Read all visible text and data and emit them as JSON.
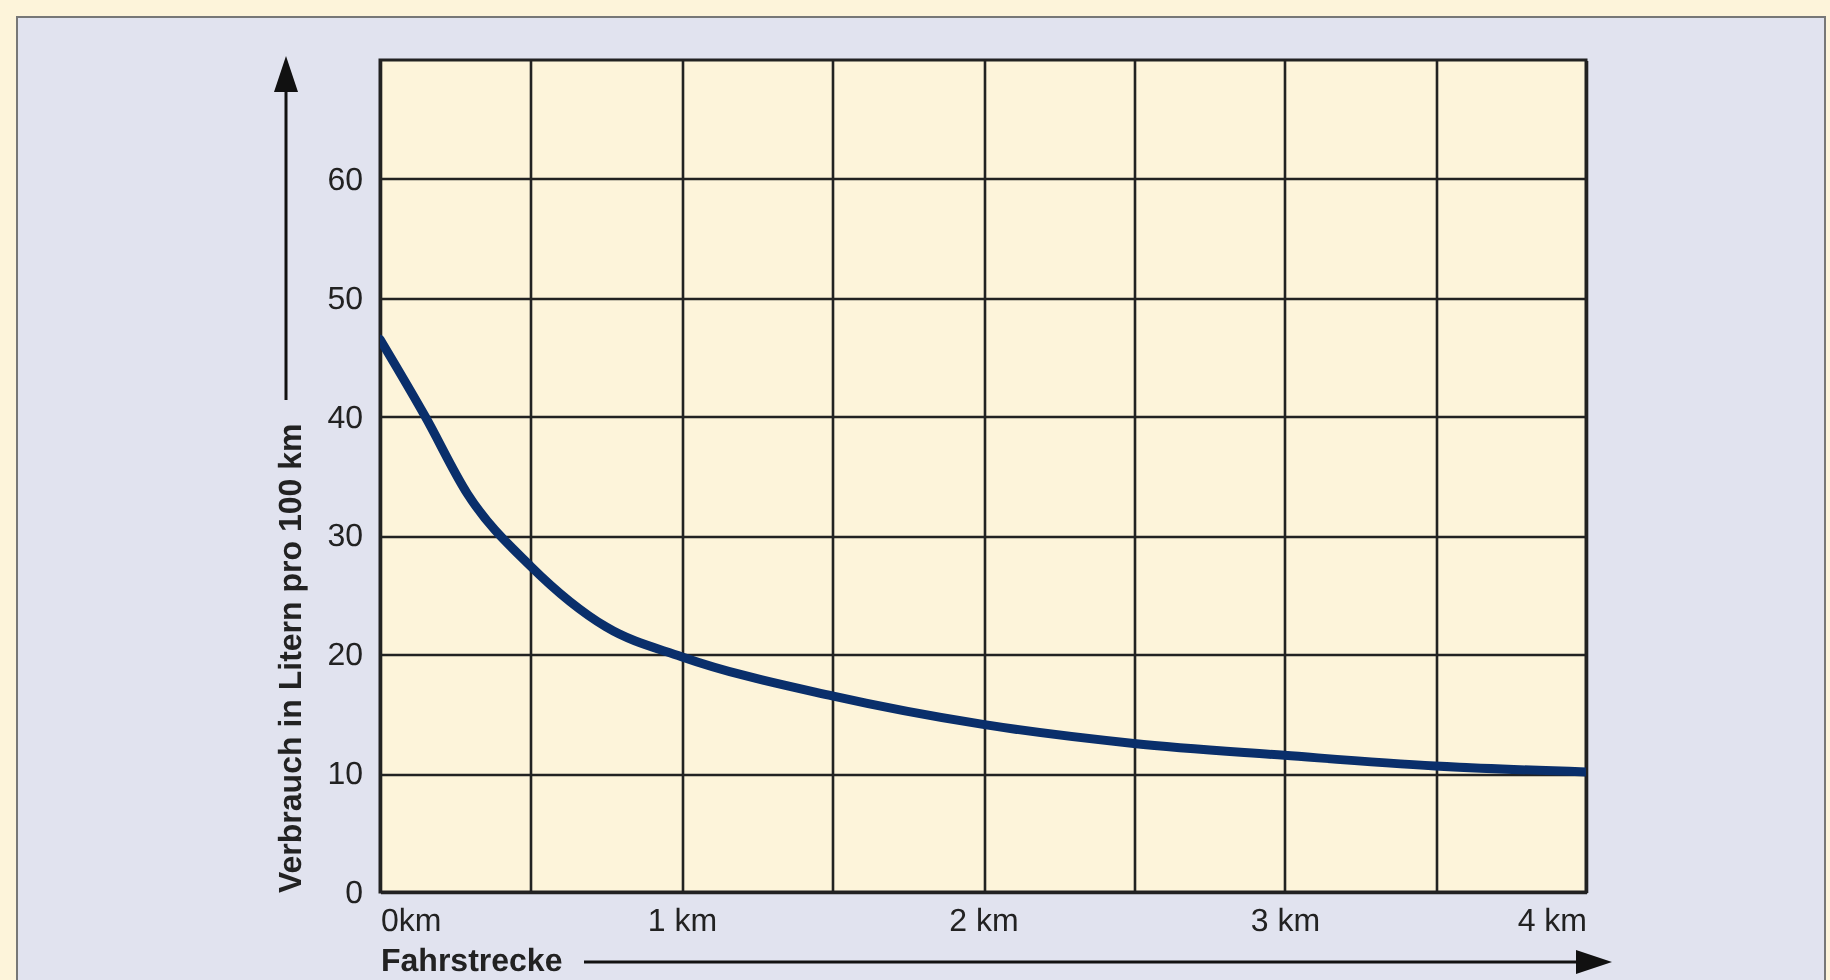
{
  "chart_data": {
    "type": "line",
    "xlabel": "Fahrstrecke",
    "ylabel": "Verbrauch in Litern pro 100 km",
    "x": [
      0,
      0.15,
      0.29,
      0.5,
      0.75,
      1,
      1.5,
      2,
      2.5,
      3,
      3.5,
      4
    ],
    "series": [
      {
        "color": "#0a2f6b",
        "values": [
          46.5,
          40,
          33.5,
          27.4,
          22.3,
          19.8,
          16.5,
          14.1,
          12.5,
          11.5,
          10.6,
          10.1
        ]
      }
    ],
    "xlim": [
      0,
      4
    ],
    "ylim": [
      0,
      70
    ],
    "xticks": [
      {
        "value": 0,
        "label": "0km"
      },
      {
        "value": 0.5,
        "label": null
      },
      {
        "value": 1,
        "label": "1 km"
      },
      {
        "value": 1.5,
        "label": null
      },
      {
        "value": 2,
        "label": "2 km"
      },
      {
        "value": 2.5,
        "label": null
      },
      {
        "value": 3,
        "label": "3 km"
      },
      {
        "value": 3.5,
        "label": null
      },
      {
        "value": 4,
        "label": "4 km"
      }
    ],
    "yticks": [
      0,
      10,
      20,
      30,
      40,
      50,
      60
    ],
    "grid": true,
    "marker": "none",
    "line_style": "solid",
    "legend": false
  }
}
